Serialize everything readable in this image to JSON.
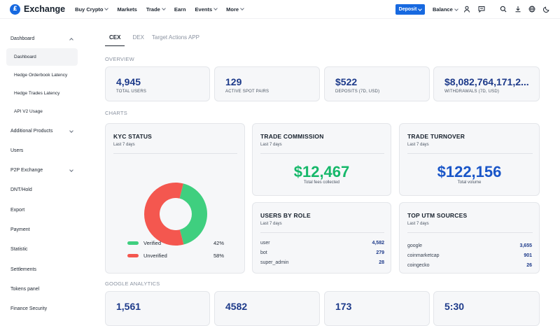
{
  "brand": {
    "logo_letter": "£",
    "name": "Exchange"
  },
  "nav": [
    {
      "label": "Buy Crypto",
      "dropdown": true
    },
    {
      "label": "Markets",
      "dropdown": false
    },
    {
      "label": "Trade",
      "dropdown": true
    },
    {
      "label": "Earn",
      "dropdown": false
    },
    {
      "label": "Events",
      "dropdown": true
    },
    {
      "label": "More",
      "dropdown": true
    }
  ],
  "header": {
    "deposit_label": "Deposit",
    "balance_label": "Balance",
    "icons": [
      "user-icon",
      "message-icon",
      "search-icon",
      "download-icon",
      "globe-icon",
      "moon-icon"
    ]
  },
  "sidebar": {
    "dashboard_group": "Dashboard",
    "sub_items": [
      "Dashboard",
      "Hedge Orderbook Latency",
      "Hedge Trades Latency",
      "API V2 Usage"
    ],
    "items": [
      {
        "label": "Additional Products",
        "dropdown": true
      },
      {
        "label": "Users",
        "dropdown": false
      },
      {
        "label": "P2P Exchange",
        "dropdown": true
      },
      {
        "label": "DNT/Hold",
        "dropdown": false
      },
      {
        "label": "Export",
        "dropdown": false
      },
      {
        "label": "Payment",
        "dropdown": false
      },
      {
        "label": "Statistic",
        "dropdown": false
      },
      {
        "label": "Settlements",
        "dropdown": false
      },
      {
        "label": "Tokens panel",
        "dropdown": false
      },
      {
        "label": "Finance Security",
        "dropdown": false
      }
    ]
  },
  "tabs": [
    "CEX",
    "DEX",
    "Target Actions APP"
  ],
  "overview": {
    "label": "OVERVIEW",
    "stats": [
      {
        "value": "4,945",
        "label": "TOTAL USERS"
      },
      {
        "value": "129",
        "label": "ACTIVE SPOT PAIRS"
      },
      {
        "value": "$522",
        "label": "DEPOSITS (7D, USD)"
      },
      {
        "value": "$8,082,764,171,2...",
        "label": "WITHDRAWALS (7D, USD)"
      }
    ]
  },
  "charts": {
    "label": "CHARTS",
    "kyc": {
      "title": "KYC STATUS",
      "subtitle": "Last 7 days",
      "slices": [
        {
          "name": "Verified",
          "percent": "42%",
          "value": 42,
          "color": "#3fcf7f"
        },
        {
          "name": "Unverified",
          "percent": "58%",
          "value": 58,
          "color": "#f4574f"
        }
      ]
    },
    "commission": {
      "title": "TRADE COMMISSION",
      "subtitle": "Last 7 days",
      "value": "$12,467",
      "caption": "Total fees collected",
      "color": "#16b86a"
    },
    "turnover": {
      "title": "TRADE TURNOVER",
      "subtitle": "Last 7 days",
      "value": "$122,156",
      "caption": "Total volume",
      "color": "#1a56c8"
    },
    "users_by_role": {
      "title": "USERS BY ROLE",
      "subtitle": "Last 7 days",
      "rows": [
        {
          "name": "user",
          "value": "4,582"
        },
        {
          "name": "bot",
          "value": "279"
        },
        {
          "name": "super_admin",
          "value": "28"
        }
      ]
    },
    "utm": {
      "title": "TOP UTM SOURCES",
      "subtitle": "Last 7 days",
      "rows": [
        {
          "name": "google",
          "value": "3,655"
        },
        {
          "name": "coinmarketcap",
          "value": "901"
        },
        {
          "name": "coingecko",
          "value": "26"
        }
      ]
    }
  },
  "analytics": {
    "label": "GOOGLE ANALYTICS",
    "stats": [
      {
        "value": "1,561"
      },
      {
        "value": "4582"
      },
      {
        "value": "173"
      },
      {
        "value": "5:30"
      }
    ]
  },
  "colors": {
    "accent": "#1769e0",
    "value_blue": "#1d3a8a"
  }
}
